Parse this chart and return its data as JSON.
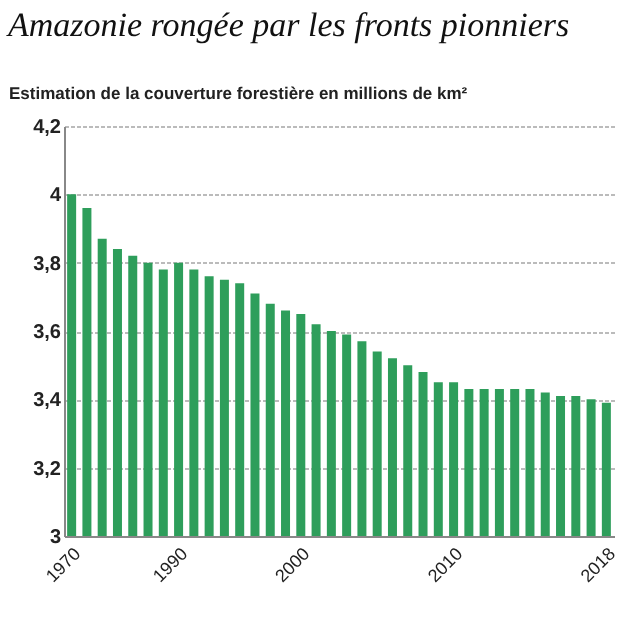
{
  "chart_data": {
    "type": "bar",
    "title": "Amazonie rongée par les fronts pionniers",
    "ylabel": "Estimation de la couverture forestière en millions de km²",
    "categories": [
      "1970",
      null,
      null,
      null,
      null,
      null,
      null,
      "1990",
      null,
      null,
      null,
      null,
      null,
      null,
      null,
      "2000",
      null,
      null,
      null,
      null,
      null,
      null,
      null,
      null,
      null,
      "2010",
      null,
      null,
      null,
      null,
      null,
      null,
      null,
      null,
      null,
      "2018"
    ],
    "values": [
      4.0,
      3.96,
      3.87,
      3.84,
      3.82,
      3.8,
      3.78,
      3.8,
      3.78,
      3.76,
      3.75,
      3.74,
      3.71,
      3.68,
      3.66,
      3.65,
      3.62,
      3.6,
      3.59,
      3.57,
      3.54,
      3.52,
      3.5,
      3.48,
      3.45,
      3.45,
      3.43,
      3.43,
      3.43,
      3.43,
      3.43,
      3.42,
      3.41,
      3.41,
      3.4,
      3.39
    ],
    "color": "#2e9e5b",
    "ylim": [
      3,
      4.2
    ],
    "yticks": [
      3,
      {
        "value": 3.2,
        "label": "3,2"
      },
      {
        "value": 3.4,
        "label": "3,4"
      },
      {
        "value": 3.6,
        "label": "3,6"
      },
      {
        "value": 3.8,
        "label": "3,8"
      },
      4,
      {
        "value": 4.2,
        "label": "4,2"
      }
    ],
    "grid": "y"
  }
}
